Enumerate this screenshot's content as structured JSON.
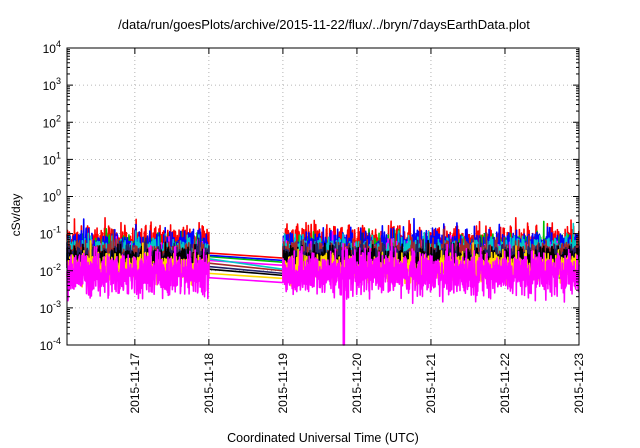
{
  "chart_data": {
    "type": "line",
    "title": "/data/run/goesPlots/archive/2015-11-22/flux/../bryn/7daysEarthData.plot",
    "xlabel": "Coordinated Universal Time (UTC)",
    "ylabel": "cSv/day",
    "yscale": "log",
    "ylim": [
      0.0001,
      10000
    ],
    "y_ticks": [
      {
        "exp": "-4",
        "value": 0.0001
      },
      {
        "exp": "-3",
        "value": 0.001
      },
      {
        "exp": "-2",
        "value": 0.01
      },
      {
        "exp": "-1",
        "value": 0.1
      },
      {
        "exp": "0",
        "value": 1
      },
      {
        "exp": "1",
        "value": 10
      },
      {
        "exp": "2",
        "value": 100
      },
      {
        "exp": "3",
        "value": 1000
      },
      {
        "exp": "4",
        "value": 10000
      }
    ],
    "y_tick_base": "10",
    "x_range": [
      "2015-11-16 02:00",
      "2015-11-23"
    ],
    "x_ticks": [
      "2015-11-17",
      "2015-11-18",
      "2015-11-19",
      "2015-11-20",
      "2015-11-21",
      "2015-11-22",
      "2015-11-23"
    ],
    "grid": true,
    "data_gap": [
      "2015-11-18",
      "2015-11-19"
    ],
    "series": [
      {
        "color": "#ff0000",
        "level": 0.045,
        "spread": 0.28,
        "gap_start": 0.03,
        "gap_end": 0.022
      },
      {
        "color": "#00c000",
        "level": 0.032,
        "spread": 0.22,
        "gap_start": 0.024,
        "gap_end": 0.017
      },
      {
        "color": "#0000ff",
        "level": 0.038,
        "spread": 0.25,
        "gap_start": 0.026,
        "gap_end": 0.019
      },
      {
        "color": "#ff00ff",
        "level": 0.022,
        "spread": 0.2,
        "gap_start": 0.019,
        "gap_end": 0.014
      },
      {
        "color": "#00c8c8",
        "level": 0.028,
        "spread": 0.22,
        "gap_start": 0.021,
        "gap_end": 0.011
      },
      {
        "color": "#a52a2a",
        "level": 0.025,
        "spread": 0.2,
        "gap_start": 0.016,
        "gap_end": 0.01
      },
      {
        "color": "#222266",
        "level": 0.02,
        "spread": 0.2,
        "gap_start": 0.013,
        "gap_end": 0.0085
      },
      {
        "color": "#000000",
        "level": 0.018,
        "spread": 0.18,
        "gap_start": 0.011,
        "gap_end": 0.0075
      },
      {
        "color": "#ffd700",
        "level": 0.012,
        "spread": 0.18,
        "gap_start": 0.0085,
        "gap_end": 0.0062
      },
      {
        "color": "#ff00ff",
        "level": 0.0085,
        "spread": 0.3,
        "gap_start": 0.0065,
        "gap_end": 0.0048,
        "drop_at": "2015-11-19 19:45"
      }
    ]
  }
}
